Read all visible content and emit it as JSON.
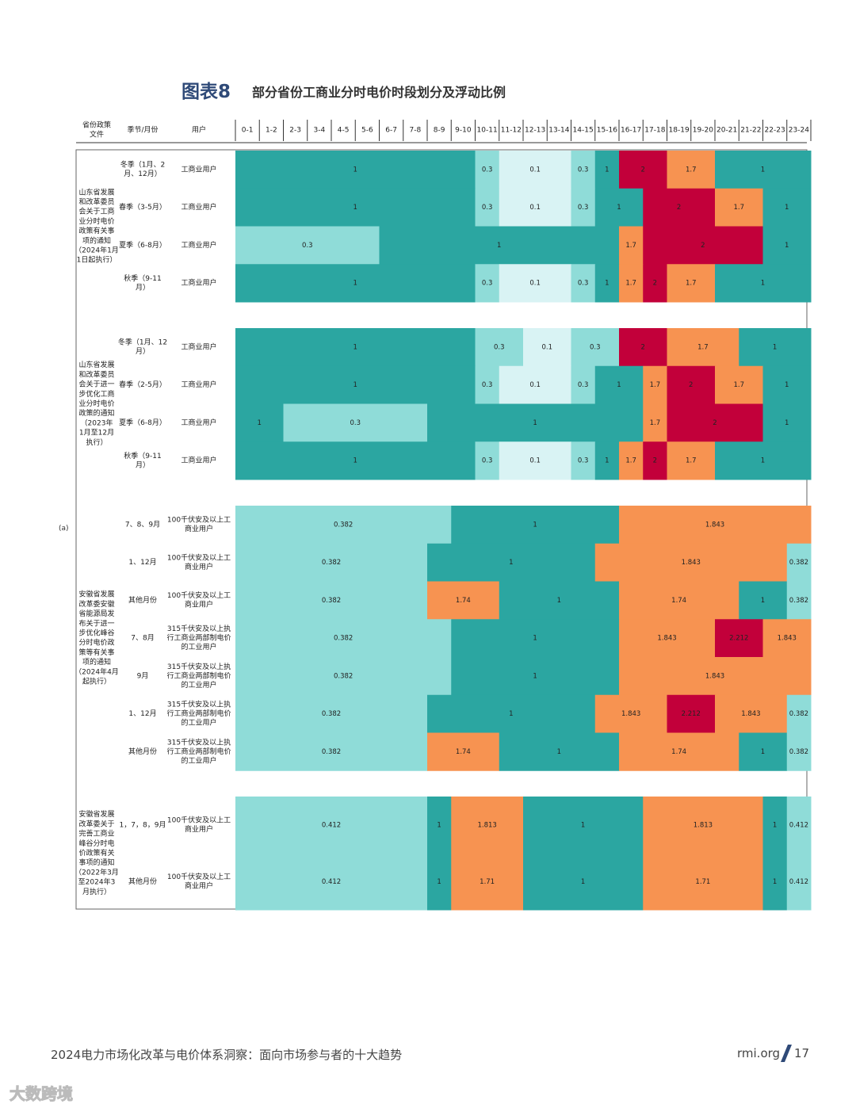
{
  "title": {
    "label": "图表8",
    "text": "部分省份工商业分时电价时段划分及浮动比例"
  },
  "side_label": "(a)",
  "colors": {
    "1": "#2ba6a1",
    "0.3": "#8fdcd8",
    "0.1": "#d9f3f4",
    "0.382": "#8fdcd8",
    "0.412": "#8fdcd8",
    "1.7": "#f79351",
    "1.74": "#f79351",
    "1.71": "#f79351",
    "1.813": "#f79351",
    "1.843": "#f79351",
    "2": "#c2003a",
    "2.212": "#c2003a"
  },
  "chart_data": {
    "type": "table",
    "headers": {
      "doc": "省份政策文件",
      "season": "季节/月份",
      "user": "用户"
    },
    "hours": [
      "0-1",
      "1-2",
      "2-3",
      "3-4",
      "4-5",
      "5-6",
      "6-7",
      "7-8",
      "8-9",
      "9-10",
      "10-11",
      "11-12",
      "12-13",
      "13-14",
      "14-15",
      "15-16",
      "16-17",
      "17-18",
      "18-19",
      "19-20",
      "20-21",
      "21-22",
      "22-23",
      "23-24"
    ],
    "groups": [
      {
        "doc": "山东省发展和改革委员会关于工商业分时电价政策有关事项的通知（2024年1月1日起执行）",
        "doc_lines": [
          "山东省发展",
          "和改革委员",
          "会关于工商",
          "业分时电价",
          "政策有关事",
          "项的通知",
          "（2024年1月",
          "1日起执行）"
        ],
        "rows": [
          {
            "season": [
              "冬季（1月、2",
              "月、12月）"
            ],
            "user": [
              "工商业用户"
            ],
            "hourly": [
              1,
              1,
              1,
              1,
              1,
              1,
              1,
              1,
              1,
              1,
              0.3,
              0.1,
              0.1,
              0.1,
              0.3,
              1,
              2,
              2,
              1.7,
              1.7,
              1,
              1,
              1,
              1
            ]
          },
          {
            "season": [
              "春季（3-5月）"
            ],
            "user": [
              "工商业用户"
            ],
            "hourly": [
              1,
              1,
              1,
              1,
              1,
              1,
              1,
              1,
              1,
              1,
              0.3,
              0.1,
              0.1,
              0.1,
              0.3,
              1,
              1,
              2,
              2,
              2,
              1.7,
              1.7,
              1,
              1
            ]
          },
          {
            "season": [
              "夏季（6-8月）"
            ],
            "user": [
              "工商业用户"
            ],
            "hourly": [
              0.3,
              0.3,
              0.3,
              0.3,
              0.3,
              0.3,
              1,
              1,
              1,
              1,
              1,
              1,
              1,
              1,
              1,
              1,
              1.7,
              2,
              2,
              2,
              2,
              2,
              1,
              1
            ]
          },
          {
            "season": [
              "秋季（9-11",
              "月）"
            ],
            "user": [
              "工商业用户"
            ],
            "hourly": [
              1,
              1,
              1,
              1,
              1,
              1,
              1,
              1,
              1,
              1,
              0.3,
              0.1,
              0.1,
              0.1,
              0.3,
              1,
              1.7,
              2,
              1.7,
              1.7,
              1,
              1,
              1,
              1
            ]
          }
        ]
      },
      {
        "doc": "山东省发展和改革委员会关于进一步优化工商业分时电价政策的通知（2023年1月至12月执行）",
        "doc_lines": [
          "山东省发展",
          "和改革委员",
          "会关于进一",
          "步优化工商",
          "业分时电价",
          "政策的通知",
          "（2023年",
          "1月至12月",
          "执行）"
        ],
        "rows": [
          {
            "season": [
              "冬季（1月、12",
              "月）"
            ],
            "user": [
              "工商业用户"
            ],
            "hourly": [
              1,
              1,
              1,
              1,
              1,
              1,
              1,
              1,
              1,
              1,
              0.3,
              0.3,
              0.1,
              0.1,
              0.3,
              0.3,
              2,
              2,
              1.7,
              1.7,
              1.7,
              1,
              1,
              1
            ]
          },
          {
            "season": [
              "春季（2-5月）"
            ],
            "user": [
              "工商业用户"
            ],
            "hourly": [
              1,
              1,
              1,
              1,
              1,
              1,
              1,
              1,
              1,
              1,
              0.3,
              0.1,
              0.1,
              0.1,
              0.3,
              1,
              1,
              1.7,
              2,
              2,
              1.7,
              1.7,
              1,
              1
            ]
          },
          {
            "season": [
              "夏季（6-8月）"
            ],
            "user": [
              "工商业用户"
            ],
            "hourly": [
              1,
              1,
              0.3,
              0.3,
              0.3,
              0.3,
              0.3,
              0.3,
              1,
              1,
              1,
              1,
              1,
              1,
              1,
              1,
              1,
              1.7,
              2,
              2,
              2,
              2,
              1,
              1
            ]
          },
          {
            "season": [
              "秋季（9-11",
              "月）"
            ],
            "user": [
              "工商业用户"
            ],
            "hourly": [
              1,
              1,
              1,
              1,
              1,
              1,
              1,
              1,
              1,
              1,
              0.3,
              0.1,
              0.1,
              0.1,
              0.3,
              1,
              1.7,
              2,
              1.7,
              1.7,
              1,
              1,
              1,
              1
            ]
          }
        ]
      },
      {
        "doc": "安徽省发展改革委安徽省能源局发布关于进一步优化峰谷分时电价政策等有关事项的通知（2024年4月起执行）",
        "doc_lines": [
          "安徽省发展",
          "改革委安徽",
          "省能源局发",
          "布关于进一",
          "步优化峰谷",
          "分时电价政",
          "策等有关事",
          "项的通知",
          "（2024年4月",
          "起执行）"
        ],
        "rows": [
          {
            "season": [
              "7、8、9月"
            ],
            "user": [
              "100千伏安及以上工",
              "商业用户"
            ],
            "hourly": [
              0.382,
              0.382,
              0.382,
              0.382,
              0.382,
              0.382,
              0.382,
              0.382,
              0.382,
              1,
              1,
              1,
              1,
              1,
              1,
              1,
              1.843,
              1.843,
              1.843,
              1.843,
              1.843,
              1.843,
              1.843,
              1.843
            ]
          },
          {
            "season": [
              "1、12月"
            ],
            "user": [
              "100千伏安及以上工",
              "商业用户"
            ],
            "hourly": [
              0.382,
              0.382,
              0.382,
              0.382,
              0.382,
              0.382,
              0.382,
              0.382,
              1,
              1,
              1,
              1,
              1,
              1,
              1,
              1.843,
              1.843,
              1.843,
              1.843,
              1.843,
              1.843,
              1.843,
              1.843,
              0.382
            ]
          },
          {
            "season": [
              "其他月份"
            ],
            "user": [
              "100千伏安及以上工",
              "商业用户"
            ],
            "hourly": [
              0.382,
              0.382,
              0.382,
              0.382,
              0.382,
              0.382,
              0.382,
              0.382,
              1.74,
              1.74,
              1.74,
              1,
              1,
              1,
              1,
              1,
              1.74,
              1.74,
              1.74,
              1.74,
              1.74,
              1,
              1,
              0.382
            ]
          },
          {
            "season": [
              "7、8月"
            ],
            "user": [
              "315千伏安及以上执",
              "行工商业两部制电价",
              "的工业用户"
            ],
            "hourly": [
              0.382,
              0.382,
              0.382,
              0.382,
              0.382,
              0.382,
              0.382,
              0.382,
              0.382,
              1,
              1,
              1,
              1,
              1,
              1,
              1,
              1.843,
              1.843,
              1.843,
              1.843,
              2.212,
              2.212,
              1.843,
              1.843
            ]
          },
          {
            "season": [
              "9月"
            ],
            "user": [
              "315千伏安及以上执",
              "行工商业两部制电价",
              "的工业用户"
            ],
            "hourly": [
              0.382,
              0.382,
              0.382,
              0.382,
              0.382,
              0.382,
              0.382,
              0.382,
              0.382,
              1,
              1,
              1,
              1,
              1,
              1,
              1,
              1.843,
              1.843,
              1.843,
              1.843,
              1.843,
              1.843,
              1.843,
              1.843
            ]
          },
          {
            "season": [
              "1、12月"
            ],
            "user": [
              "315千伏安及以上执",
              "行工商业两部制电价",
              "的工业用户"
            ],
            "hourly": [
              0.382,
              0.382,
              0.382,
              0.382,
              0.382,
              0.382,
              0.382,
              0.382,
              1,
              1,
              1,
              1,
              1,
              1,
              1,
              1.843,
              1.843,
              1.843,
              2.212,
              2.212,
              1.843,
              1.843,
              1.843,
              0.382
            ]
          },
          {
            "season": [
              "其他月份"
            ],
            "user": [
              "315千伏安及以上执",
              "行工商业两部制电价",
              "的工业用户"
            ],
            "hourly": [
              0.382,
              0.382,
              0.382,
              0.382,
              0.382,
              0.382,
              0.382,
              0.382,
              1.74,
              1.74,
              1.74,
              1,
              1,
              1,
              1,
              1,
              1.74,
              1.74,
              1.74,
              1.74,
              1.74,
              1,
              1,
              0.382
            ]
          }
        ]
      },
      {
        "doc": "安徽省发展改革委关于完善工商业峰谷分时电价政策有关事项的通知（2022年3月至2024年3月执行）",
        "doc_lines": [
          "安徽省发展",
          "改革委关于",
          "完善工商业",
          "峰谷分时电",
          "价政策有关",
          "事项的通知",
          "（2022年3月",
          "至2024年3",
          "月执行）"
        ],
        "rows": [
          {
            "season": [
              "1，7，8，9月"
            ],
            "user": [
              "100千伏安及以上工",
              "商业用户"
            ],
            "hourly": [
              0.412,
              0.412,
              0.412,
              0.412,
              0.412,
              0.412,
              0.412,
              0.412,
              1,
              1.813,
              1.813,
              1.813,
              1,
              1,
              1,
              1,
              1,
              1.813,
              1.813,
              1.813,
              1.813,
              1.813,
              1,
              0.412
            ]
          },
          {
            "season": [
              "其他月份"
            ],
            "user": [
              "100千伏安及以上工",
              "商业用户"
            ],
            "hourly": [
              0.412,
              0.412,
              0.412,
              0.412,
              0.412,
              0.412,
              0.412,
              0.412,
              1,
              1.71,
              1.71,
              1.71,
              1,
              1,
              1,
              1,
              1,
              1.71,
              1.71,
              1.71,
              1.71,
              1.71,
              1,
              0.412
            ]
          }
        ]
      }
    ]
  },
  "footer": {
    "left": "2024电力市场化改革与电价体系洞察：面向市场参与者的十大趋势",
    "site": "rmi.org",
    "page": "17"
  },
  "watermark": "大数跨境"
}
